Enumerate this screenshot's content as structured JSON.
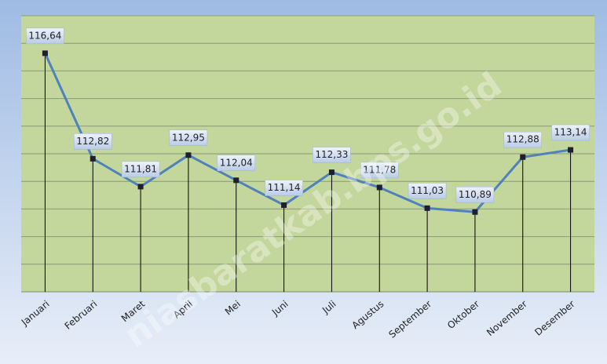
{
  "chart_data": {
    "type": "line",
    "categories": [
      "Januari",
      "Februari",
      "Maret",
      "April",
      "Mei",
      "Juni",
      "Juli",
      "Agustus",
      "September",
      "Oktober",
      "November",
      "Desember"
    ],
    "series": [
      {
        "color": "#4f81bd",
        "values": [
          116.64,
          112.82,
          111.81,
          112.95,
          112.04,
          111.14,
          112.33,
          111.78,
          111.03,
          110.89,
          112.88,
          113.14
        ],
        "value_labels": [
          "116,64",
          "112,82",
          "111,81",
          "112,95",
          "112,04",
          "111,14",
          "112,33",
          "111,78",
          "111,03",
          "110,89",
          "112,88",
          "113,14"
        ]
      }
    ],
    "ylim": [
      108,
      118
    ],
    "yticks": [
      108,
      109,
      110,
      111,
      112,
      113,
      114,
      115,
      116,
      117,
      118
    ],
    "grid": true,
    "watermark": "niasbaratkab.bps.go.id"
  }
}
